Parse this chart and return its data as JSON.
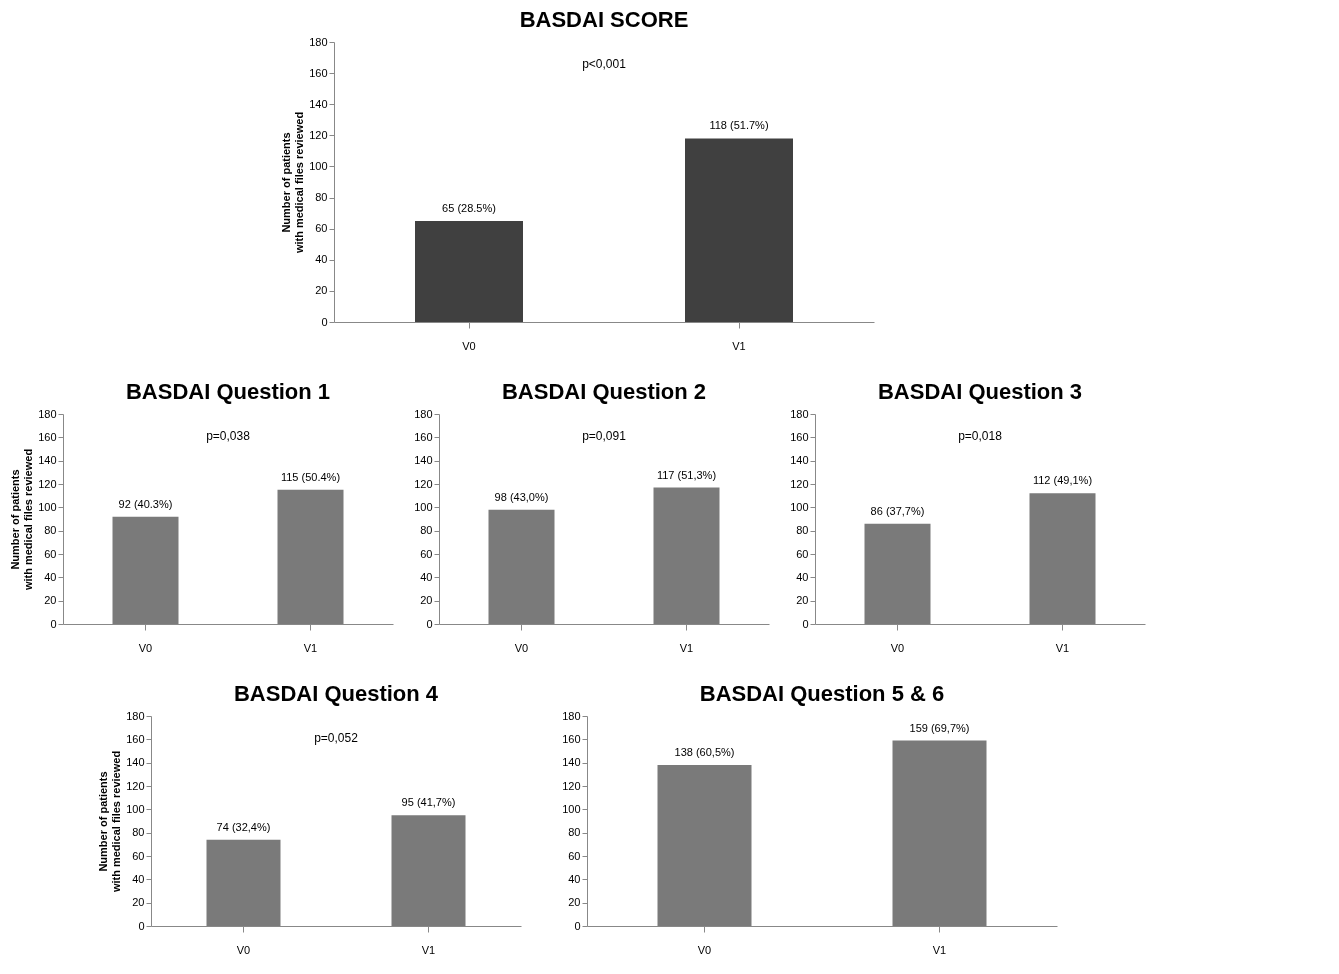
{
  "chart_data": [
    {
      "type": "bar",
      "title": "BASDAI SCORE",
      "ylabel": "Number of patients\nwith medical files reviewed",
      "categories": [
        "V0",
        "V1"
      ],
      "values": [
        65,
        118
      ],
      "value_labels": [
        "65 (28.5%)",
        "118 (51.7%)"
      ],
      "color": "#404040",
      "ylim": [
        0,
        180
      ],
      "yticks": [
        0,
        20,
        40,
        60,
        80,
        100,
        120,
        140,
        160,
        180
      ],
      "annotations": [
        "p<0,001"
      ]
    },
    {
      "type": "bar",
      "title": "BASDAI Question 1",
      "ylabel": "Number of patients\nwith medical files reviewed",
      "categories": [
        "V0",
        "V1"
      ],
      "values": [
        92,
        115
      ],
      "value_labels": [
        "92 (40.3%)",
        "115 (50.4%)"
      ],
      "color": "#7a7a7a",
      "ylim": [
        0,
        180
      ],
      "yticks": [
        0,
        20,
        40,
        60,
        80,
        100,
        120,
        140,
        160,
        180
      ],
      "annotations": [
        "p=0,038"
      ]
    },
    {
      "type": "bar",
      "title": "BASDAI Question 2",
      "categories": [
        "V0",
        "V1"
      ],
      "values": [
        98,
        117
      ],
      "value_labels": [
        "98 (43,0%)",
        "117 (51,3%)"
      ],
      "color": "#7a7a7a",
      "ylim": [
        0,
        180
      ],
      "yticks": [
        0,
        20,
        40,
        60,
        80,
        100,
        120,
        140,
        160,
        180
      ],
      "annotations": [
        "p=0,091"
      ]
    },
    {
      "type": "bar",
      "title": "BASDAI Question 3",
      "categories": [
        "V0",
        "V1"
      ],
      "values": [
        86,
        112
      ],
      "value_labels": [
        "86 (37,7%)",
        "112 (49,1%)"
      ],
      "color": "#7a7a7a",
      "ylim": [
        0,
        180
      ],
      "yticks": [
        0,
        20,
        40,
        60,
        80,
        100,
        120,
        140,
        160,
        180
      ],
      "annotations": [
        "p=0,018"
      ]
    },
    {
      "type": "bar",
      "title": "BASDAI Question 4",
      "ylabel": "Number of patients\nwith medical files reviewed",
      "categories": [
        "V0",
        "V1"
      ],
      "values": [
        74,
        95
      ],
      "value_labels": [
        "74 (32,4%)",
        "95 (41,7%)"
      ],
      "color": "#7a7a7a",
      "ylim": [
        0,
        180
      ],
      "yticks": [
        0,
        20,
        40,
        60,
        80,
        100,
        120,
        140,
        160,
        180
      ],
      "annotations": [
        "p=0,052"
      ]
    },
    {
      "type": "bar",
      "title": "BASDAI Question 5 & 6",
      "categories": [
        "V0",
        "V1"
      ],
      "values": [
        138,
        159
      ],
      "value_labels": [
        "138 (60,5%)",
        "159 (69,7%)"
      ],
      "color": "#7a7a7a",
      "ylim": [
        0,
        180
      ],
      "yticks": [
        0,
        20,
        40,
        60,
        80,
        100,
        120,
        140,
        160,
        180
      ]
    }
  ]
}
